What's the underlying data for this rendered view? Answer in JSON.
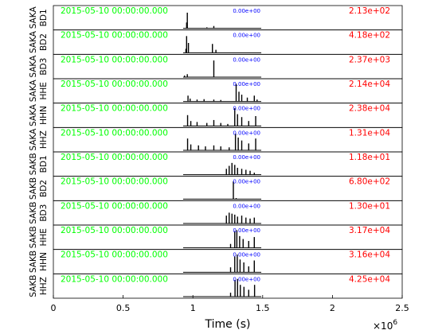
{
  "chart_data": {
    "type": "line",
    "xlabel": "Time (s)",
    "x_exponent_label": "×10",
    "x_exponent": "6",
    "xlim": [
      0,
      2500000
    ],
    "x_ticks": [
      {
        "value": 0,
        "label": "0"
      },
      {
        "value": 500000,
        "label": "0.5"
      },
      {
        "value": 1000000,
        "label": "1"
      },
      {
        "value": 1500000,
        "label": "1.5"
      },
      {
        "value": 2000000,
        "label": "2"
      },
      {
        "value": 2500000,
        "label": "2.5"
      }
    ],
    "grid": false,
    "traces": [
      {
        "station": "SAKA",
        "channel": "BD1",
        "start_time": "2015-05-10 00:00:00.000",
        "min_label": "0.00e+00",
        "max_label": "2.13e+02",
        "spikes": [
          [
            960000,
            0.8
          ],
          [
            955000,
            0.3
          ],
          [
            1150000,
            0.12
          ],
          [
            1100000,
            0.05
          ]
        ]
      },
      {
        "station": "SAKA",
        "channel": "BD2",
        "start_time": "2015-05-10 00:00:00.000",
        "min_label": "0.00e+00",
        "max_label": "4.18e+02",
        "spikes": [
          [
            955000,
            0.85
          ],
          [
            968000,
            0.5
          ],
          [
            1140000,
            0.45
          ],
          [
            1165000,
            0.15
          ],
          [
            950000,
            0.2
          ]
        ]
      },
      {
        "station": "SAKA",
        "channel": "BD3",
        "start_time": "2015-05-10 00:00:00.000",
        "min_label": "0.00e+00",
        "max_label": "2.37e+03",
        "spikes": [
          [
            1150000,
            0.85
          ],
          [
            960000,
            0.15
          ],
          [
            940000,
            0.08
          ]
        ]
      },
      {
        "station": "SAKA",
        "channel": "HHE",
        "start_time": "2015-05-10 00:00:00.000",
        "min_label": "0.00e+00",
        "max_label": "2.14e+04",
        "spikes": [
          [
            965000,
            0.3
          ],
          [
            980000,
            0.15
          ],
          [
            1030000,
            0.1
          ],
          [
            1080000,
            0.12
          ],
          [
            1150000,
            0.1
          ],
          [
            1200000,
            0.08
          ],
          [
            1310000,
            0.9
          ],
          [
            1330000,
            0.5
          ],
          [
            1350000,
            0.35
          ],
          [
            1390000,
            0.2
          ],
          [
            1440000,
            0.3
          ],
          [
            1460000,
            0.1
          ]
        ]
      },
      {
        "station": "SAKA",
        "channel": "HHN",
        "start_time": "2015-05-10 00:00:00.000",
        "min_label": "0.00e+00",
        "max_label": "2.38e+04",
        "spikes": [
          [
            962000,
            0.55
          ],
          [
            985000,
            0.25
          ],
          [
            1030000,
            0.2
          ],
          [
            1100000,
            0.15
          ],
          [
            1150000,
            0.3
          ],
          [
            1200000,
            0.15
          ],
          [
            1250000,
            0.1
          ],
          [
            1300000,
            0.9
          ],
          [
            1320000,
            0.6
          ],
          [
            1350000,
            0.45
          ],
          [
            1400000,
            0.25
          ],
          [
            1450000,
            0.5
          ]
        ]
      },
      {
        "station": "SAKA",
        "channel": "HHZ",
        "start_time": "2015-05-10 00:00:00.000",
        "min_label": "0.00e+00",
        "max_label": "1.31e+04",
        "spikes": [
          [
            962000,
            0.6
          ],
          [
            985000,
            0.3
          ],
          [
            1040000,
            0.25
          ],
          [
            1090000,
            0.2
          ],
          [
            1150000,
            0.25
          ],
          [
            1200000,
            0.2
          ],
          [
            1260000,
            0.15
          ],
          [
            1305000,
            0.85
          ],
          [
            1325000,
            0.65
          ],
          [
            1350000,
            0.5
          ],
          [
            1400000,
            0.35
          ],
          [
            1450000,
            0.6
          ]
        ]
      },
      {
        "station": "SAKB",
        "channel": "BD1",
        "start_time": "2015-05-10 00:00:00.000",
        "min_label": "0.00e+00",
        "max_label": "1.18e+01",
        "spikes": [
          [
            1240000,
            0.3
          ],
          [
            1260000,
            0.45
          ],
          [
            1280000,
            0.6
          ],
          [
            1300000,
            0.5
          ],
          [
            1320000,
            0.35
          ],
          [
            1350000,
            0.3
          ],
          [
            1380000,
            0.25
          ],
          [
            1410000,
            0.2
          ],
          [
            1440000,
            0.1
          ]
        ]
      },
      {
        "station": "SAKB",
        "channel": "BD2",
        "start_time": "2015-05-10 00:00:00.000",
        "min_label": "0.00e+00",
        "max_label": "6.80e+02",
        "spikes": [
          [
            1290000,
            0.9
          ],
          [
            1310000,
            0.05
          ]
        ]
      },
      {
        "station": "SAKB",
        "channel": "BD3",
        "start_time": "2015-05-10 00:00:00.000",
        "min_label": "0.00e+00",
        "max_label": "1.30e+01",
        "spikes": [
          [
            1240000,
            0.4
          ],
          [
            1260000,
            0.55
          ],
          [
            1280000,
            0.5
          ],
          [
            1300000,
            0.45
          ],
          [
            1320000,
            0.35
          ],
          [
            1350000,
            0.4
          ],
          [
            1380000,
            0.3
          ],
          [
            1410000,
            0.25
          ],
          [
            1440000,
            0.3
          ]
        ]
      },
      {
        "station": "SAKB",
        "channel": "HHE",
        "start_time": "2015-05-10 00:00:00.000",
        "min_label": "0.00e+00",
        "max_label": "3.17e+04",
        "spikes": [
          [
            1270000,
            0.2
          ],
          [
            1300000,
            0.85
          ],
          [
            1315000,
            0.9
          ],
          [
            1335000,
            0.6
          ],
          [
            1360000,
            0.45
          ],
          [
            1400000,
            0.35
          ],
          [
            1440000,
            0.55
          ]
        ]
      },
      {
        "station": "SAKB",
        "channel": "HHN",
        "start_time": "2015-05-10 00:00:00.000",
        "min_label": "0.00e+00",
        "max_label": "3.16e+04",
        "spikes": [
          [
            1270000,
            0.25
          ],
          [
            1300000,
            0.8
          ],
          [
            1318000,
            0.9
          ],
          [
            1338000,
            0.65
          ],
          [
            1365000,
            0.5
          ],
          [
            1400000,
            0.3
          ],
          [
            1440000,
            0.6
          ]
        ]
      },
      {
        "station": "SAKB",
        "channel": "HHZ",
        "start_time": "2015-05-10 00:00:00.000",
        "min_label": "0.00e+00",
        "max_label": "4.25e+04",
        "spikes": [
          [
            1270000,
            0.2
          ],
          [
            1302000,
            0.85
          ],
          [
            1320000,
            0.9
          ],
          [
            1340000,
            0.6
          ],
          [
            1366000,
            0.5
          ],
          [
            1400000,
            0.35
          ],
          [
            1442000,
            0.6
          ]
        ]
      }
    ]
  },
  "colors": {
    "start_time": "#00ff00",
    "max_label": "#ff0000",
    "min_label": "#0000ff",
    "trace": "#000000"
  }
}
